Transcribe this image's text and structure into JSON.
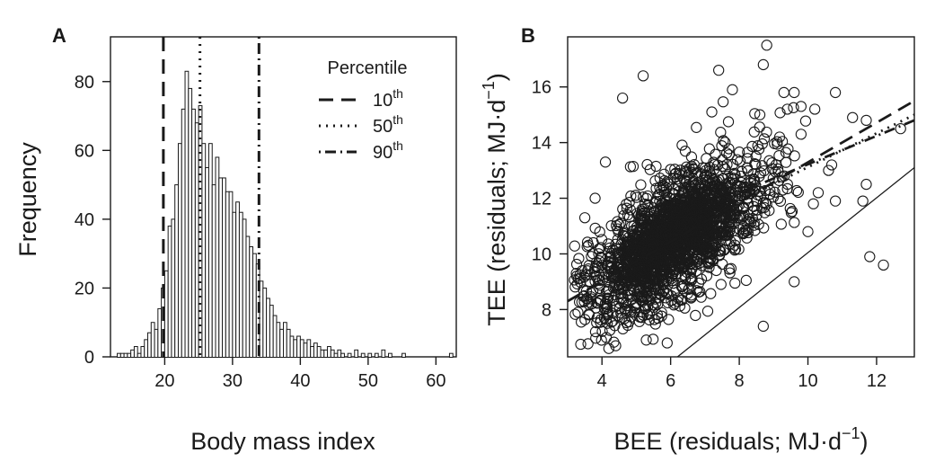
{
  "chart_data": [
    {
      "panel": "A",
      "type": "bar",
      "subtype": "histogram",
      "xlabel": "Body mass index",
      "ylabel": "Frequency",
      "xlim": [
        12,
        63
      ],
      "ylim": [
        0,
        93
      ],
      "xticks": [
        20,
        30,
        40,
        50,
        60
      ],
      "yticks": [
        0,
        20,
        40,
        60,
        80
      ],
      "bin_width": 0.5,
      "bins": [
        [
          13,
          1
        ],
        [
          13.5,
          1
        ],
        [
          14,
          1
        ],
        [
          14.5,
          1
        ],
        [
          15,
          2
        ],
        [
          15.5,
          3
        ],
        [
          16,
          1
        ],
        [
          16.5,
          3
        ],
        [
          17,
          5
        ],
        [
          17.5,
          7
        ],
        [
          18,
          10
        ],
        [
          18.5,
          8
        ],
        [
          19,
          14
        ],
        [
          19.5,
          20
        ],
        [
          20,
          25
        ],
        [
          20.5,
          38
        ],
        [
          21,
          40
        ],
        [
          21.5,
          50
        ],
        [
          22,
          62
        ],
        [
          22.5,
          72
        ],
        [
          23,
          83
        ],
        [
          23.5,
          78
        ],
        [
          24,
          72
        ],
        [
          24.5,
          68
        ],
        [
          25,
          73
        ],
        [
          25.5,
          62
        ],
        [
          26,
          55
        ],
        [
          26.5,
          62
        ],
        [
          27,
          50
        ],
        [
          27.5,
          58
        ],
        [
          28,
          52
        ],
        [
          28.5,
          52
        ],
        [
          29,
          48
        ],
        [
          29.5,
          48
        ],
        [
          30,
          42
        ],
        [
          30.5,
          45
        ],
        [
          31,
          42
        ],
        [
          31.5,
          40
        ],
        [
          32,
          35
        ],
        [
          32.5,
          32
        ],
        [
          33,
          30
        ],
        [
          33.5,
          27
        ],
        [
          34,
          22
        ],
        [
          34.5,
          20
        ],
        [
          35,
          17
        ],
        [
          35.5,
          15
        ],
        [
          36,
          12
        ],
        [
          36.5,
          10
        ],
        [
          37,
          8
        ],
        [
          37.5,
          10
        ],
        [
          38,
          8
        ],
        [
          38.5,
          6
        ],
        [
          39,
          5
        ],
        [
          39.5,
          6
        ],
        [
          40,
          5
        ],
        [
          40.5,
          4
        ],
        [
          41,
          5
        ],
        [
          41.5,
          3
        ],
        [
          42,
          4
        ],
        [
          42.5,
          3
        ],
        [
          43,
          2
        ],
        [
          43.5,
          2
        ],
        [
          44,
          3
        ],
        [
          44.5,
          2
        ],
        [
          45,
          1
        ],
        [
          45.5,
          2
        ],
        [
          46,
          1
        ],
        [
          47,
          1
        ],
        [
          48,
          2
        ],
        [
          49,
          1
        ],
        [
          50,
          1
        ],
        [
          51,
          1
        ],
        [
          52,
          2
        ],
        [
          53,
          1
        ],
        [
          55,
          1
        ],
        [
          62,
          1
        ]
      ],
      "lines": [
        {
          "name": "10",
          "x": 19.8,
          "style": "dashed"
        },
        {
          "name": "50",
          "x": 25.2,
          "style": "dotted"
        },
        {
          "name": "90",
          "x": 33.9,
          "style": "dot-dash"
        }
      ],
      "legend": {
        "title": "Percentile",
        "placement": "top-right",
        "entries": [
          {
            "label": "10",
            "suffix": "th",
            "style": "dashed"
          },
          {
            "label": "50",
            "suffix": "th",
            "style": "dotted"
          },
          {
            "label": "90",
            "suffix": "th",
            "style": "dot-dash"
          }
        ]
      }
    },
    {
      "panel": "B",
      "type": "scatter",
      "xlabel": "BEE (residuals; MJ·d",
      "ylabel": "TEE (residuals; MJ·d",
      "label_exponent": "−1",
      "label_close": ")",
      "xlim": [
        3,
        13.1
      ],
      "ylim": [
        6.3,
        17.8
      ],
      "xticks": [
        4,
        6,
        8,
        10,
        12
      ],
      "yticks": [
        8,
        10,
        12,
        14,
        16
      ],
      "center": {
        "x": 5.9,
        "y": 10.4
      },
      "outliers": [
        [
          8.8,
          17.5
        ],
        [
          8.7,
          16.8
        ],
        [
          7.4,
          16.6
        ],
        [
          4.6,
          15.6
        ],
        [
          5.2,
          16.4
        ],
        [
          7.8,
          15.9
        ],
        [
          9.3,
          15.8
        ],
        [
          9.6,
          15.8
        ],
        [
          10.8,
          15.8
        ],
        [
          11.3,
          14.9
        ],
        [
          12.7,
          14.5
        ],
        [
          11.7,
          14.8
        ],
        [
          9.4,
          15.2
        ],
        [
          9.8,
          15.3
        ],
        [
          10.2,
          15.2
        ],
        [
          8.6,
          15.0
        ],
        [
          10.3,
          12.2
        ],
        [
          11.7,
          12.5
        ],
        [
          11.8,
          9.9
        ],
        [
          12.2,
          9.6
        ],
        [
          8.7,
          7.4
        ],
        [
          4.4,
          6.7
        ],
        [
          5.9,
          6.8
        ],
        [
          3.3,
          7.9
        ],
        [
          3.7,
          8.2
        ],
        [
          4.2,
          6.6
        ],
        [
          9.6,
          9.0
        ],
        [
          10.8,
          11.9
        ],
        [
          3.5,
          11.3
        ],
        [
          3.8,
          12.0
        ],
        [
          4.1,
          13.3
        ],
        [
          10.0,
          10.8
        ],
        [
          9.8,
          14.3
        ],
        [
          10.6,
          13.0
        ],
        [
          11.6,
          11.9
        ],
        [
          7.2,
          15.1
        ]
      ],
      "regression_lines": [
        {
          "name": "10",
          "style": "dashed",
          "x1": 3.0,
          "y1": 8.3,
          "x2": 13.1,
          "y2": 15.5
        },
        {
          "name": "50",
          "style": "dotted",
          "x1": 8.0,
          "y1": 11.9,
          "x2": 13.1,
          "y2": 15.0
        },
        {
          "name": "90",
          "style": "dot-dash",
          "x1": 8.0,
          "y1": 12.2,
          "x2": 13.1,
          "y2": 14.8
        },
        {
          "name": "identity",
          "style": "solid",
          "x1": 6.2,
          "y1": 6.3,
          "x2": 13.1,
          "y2": 13.1
        }
      ]
    }
  ]
}
